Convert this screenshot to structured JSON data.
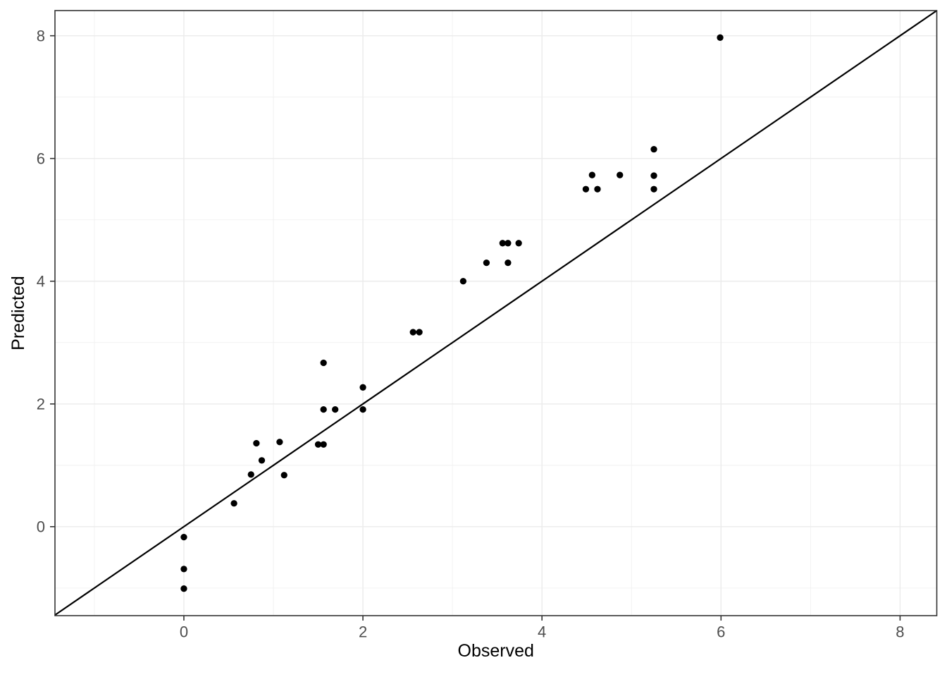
{
  "chart_data": {
    "type": "scatter",
    "title": "",
    "xlabel": "Observed",
    "ylabel": "Predicted",
    "xlim": [
      -1.44,
      8.41
    ],
    "ylim": [
      -1.45,
      8.41
    ],
    "x_major_ticks": [
      0,
      2,
      4,
      6,
      8
    ],
    "y_major_ticks": [
      0,
      2,
      4,
      6,
      8
    ],
    "x_minor_ticks": [
      -1,
      1,
      3,
      5,
      7
    ],
    "y_minor_ticks": [
      -1,
      1,
      3,
      5,
      7
    ],
    "grid": "major and minor on, light gray",
    "legend": "none",
    "reference_line": {
      "slope": 1,
      "intercept": 0
    },
    "points": [
      [
        0,
        -0.17
      ],
      [
        0,
        -0.69
      ],
      [
        0,
        -1.01
      ],
      [
        0.56,
        0.38
      ],
      [
        0.75,
        0.85
      ],
      [
        0.81,
        1.36
      ],
      [
        0.87,
        1.08
      ],
      [
        1.07,
        1.38
      ],
      [
        1.12,
        0.84
      ],
      [
        1.5,
        1.34
      ],
      [
        1.56,
        1.34
      ],
      [
        1.56,
        1.91
      ],
      [
        1.56,
        2.67
      ],
      [
        1.69,
        1.91
      ],
      [
        2.0,
        1.91
      ],
      [
        2.0,
        2.27
      ],
      [
        2.56,
        3.17
      ],
      [
        2.63,
        3.17
      ],
      [
        3.12,
        4.0
      ],
      [
        3.38,
        4.3
      ],
      [
        3.56,
        4.62
      ],
      [
        3.62,
        4.3
      ],
      [
        3.62,
        4.62
      ],
      [
        3.74,
        4.62
      ],
      [
        4.49,
        5.5
      ],
      [
        4.56,
        5.73
      ],
      [
        4.62,
        5.5
      ],
      [
        4.87,
        5.73
      ],
      [
        5.25,
        5.5
      ],
      [
        5.25,
        5.72
      ],
      [
        5.25,
        6.15
      ],
      [
        5.99,
        7.97
      ]
    ],
    "point_style": {
      "color": "#000000",
      "radius": 4.65
    },
    "line_style": {
      "color": "#000000",
      "width": 2.2
    },
    "colors": {
      "background": "#ffffff",
      "panel_background": "#ffffff",
      "grid_major": "#ebebeb",
      "grid_minor": "#efefef",
      "panel_border": "#333333",
      "tick_mark": "#333333",
      "tick_label": "#4d4d4d",
      "axis_title": "#000000"
    }
  }
}
